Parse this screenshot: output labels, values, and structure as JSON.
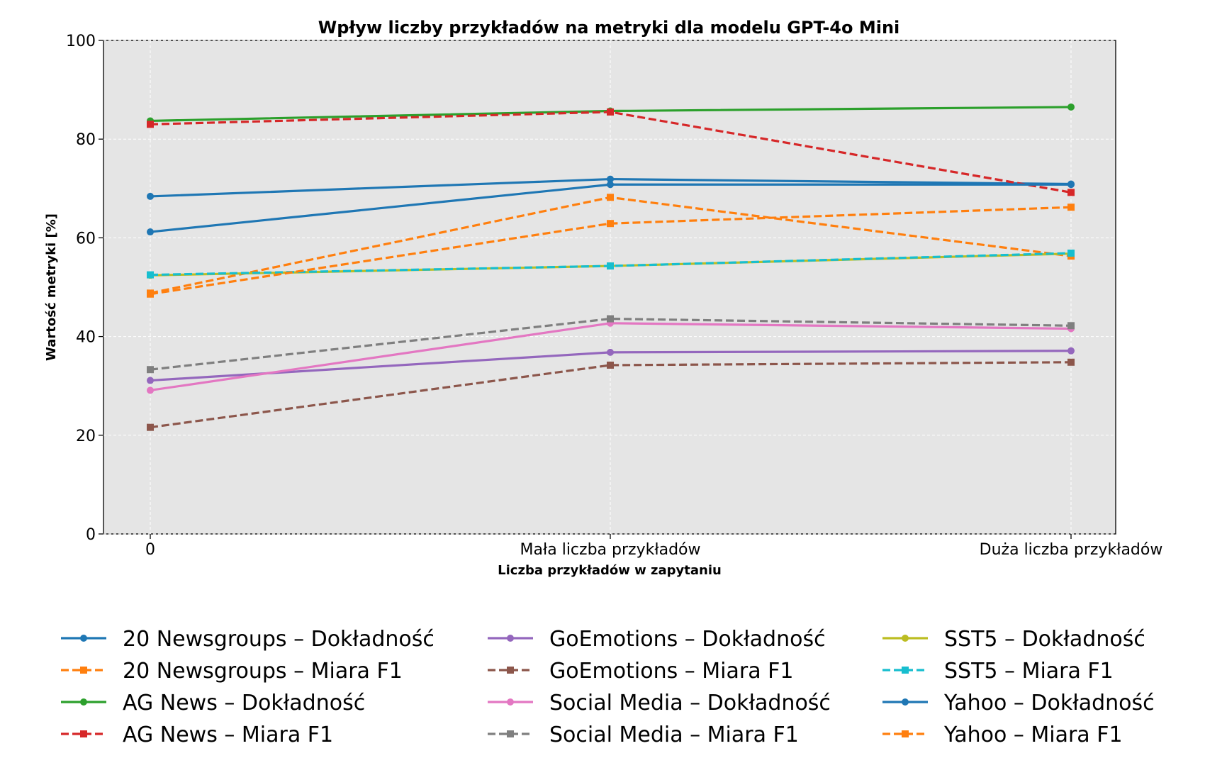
{
  "chart_data": {
    "type": "line",
    "title": "Wpływ liczby przykładów na metryki dla modelu GPT-4o Mini",
    "xlabel": "Liczba przykładów w zapytaniu",
    "ylabel": "Wartość metryki [%]",
    "categories": [
      "0",
      "Mała liczba przykładów",
      "Duża liczba przykładów"
    ],
    "ylim": [
      0,
      100
    ],
    "yticks": [
      "0",
      "20",
      "40",
      "60",
      "80",
      "100"
    ],
    "grid": true,
    "legend_position": "bottom",
    "series": [
      {
        "name": "20 Newsgroups – Dokładność",
        "values": [
          68.4,
          71.9,
          70.9
        ],
        "color": "#1f77b4",
        "dash": "solid",
        "marker": "circle"
      },
      {
        "name": "20 Newsgroups – Miara F1",
        "values": [
          48.8,
          68.2,
          56.3
        ],
        "color": "#ff7f0e",
        "dash": "dashed",
        "marker": "square"
      },
      {
        "name": "AG News – Dokładność",
        "values": [
          83.7,
          85.7,
          86.5
        ],
        "color": "#2ca02c",
        "dash": "solid",
        "marker": "circle"
      },
      {
        "name": "AG News – Miara F1",
        "values": [
          83.0,
          85.5,
          69.2
        ],
        "color": "#d62728",
        "dash": "dashed",
        "marker": "square"
      },
      {
        "name": "GoEmotions – Dokładność",
        "values": [
          31.1,
          36.8,
          37.1
        ],
        "color": "#9467bd",
        "dash": "solid",
        "marker": "circle"
      },
      {
        "name": "GoEmotions – Miara F1",
        "values": [
          21.6,
          34.2,
          34.8
        ],
        "color": "#8c564b",
        "dash": "dashed",
        "marker": "square"
      },
      {
        "name": "Social Media – Dokładność",
        "values": [
          29.1,
          42.7,
          41.6
        ],
        "color": "#e377c2",
        "dash": "solid",
        "marker": "circle"
      },
      {
        "name": "Social Media – Miara F1",
        "values": [
          33.3,
          43.6,
          42.2
        ],
        "color": "#7f7f7f",
        "dash": "dashed",
        "marker": "square"
      },
      {
        "name": "SST5 – Dokładność",
        "values": [
          52.4,
          54.3,
          56.8
        ],
        "color": "#bcbd22",
        "dash": "solid",
        "marker": "circle"
      },
      {
        "name": "SST5 – Miara F1",
        "values": [
          52.5,
          54.3,
          56.9
        ],
        "color": "#17becf",
        "dash": "dashed",
        "marker": "square"
      },
      {
        "name": "Yahoo – Dokładność",
        "values": [
          61.2,
          70.8,
          70.8
        ],
        "color": "#1f77b4",
        "dash": "solid",
        "marker": "circle"
      },
      {
        "name": "Yahoo – Miara F1",
        "values": [
          48.6,
          62.9,
          66.2
        ],
        "color": "#ff7f0e",
        "dash": "dashed",
        "marker": "square"
      }
    ]
  }
}
